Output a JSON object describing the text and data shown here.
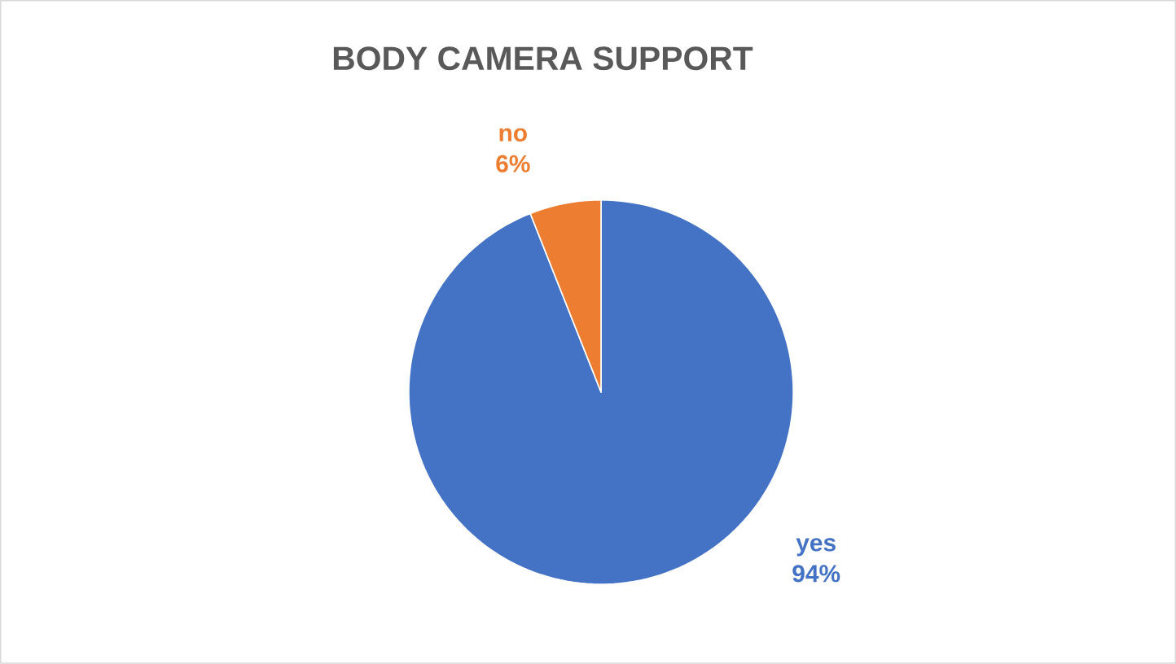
{
  "chart_data": {
    "type": "pie",
    "title": "BODY CAMERA SUPPORT",
    "categories": [
      "yes",
      "no"
    ],
    "values": [
      94,
      6
    ],
    "colors": [
      "#4472c4",
      "#ed7d31"
    ],
    "value_labels": [
      "94%",
      "6%"
    ]
  }
}
